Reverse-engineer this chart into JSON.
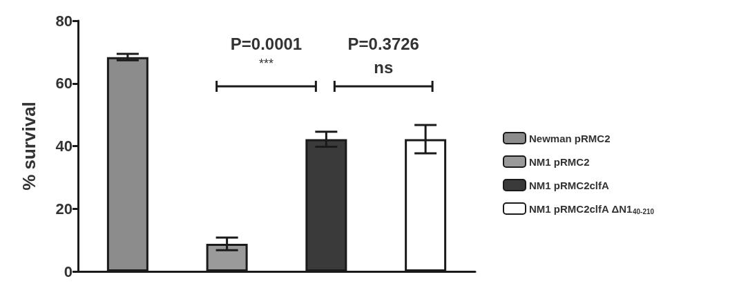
{
  "chart_data": {
    "type": "bar",
    "ylabel": "% survival",
    "categories": [
      null,
      null,
      null,
      null
    ],
    "series": [
      {
        "name": "Newman pRMC2",
        "color": "#8c8c8c",
        "values": [
          68.4,
          null,
          null,
          null
        ],
        "errors": [
          1,
          null,
          null,
          null
        ]
      },
      {
        "name": "NM1 pRMC2",
        "color": "#9a9a9a",
        "values": [
          null,
          8.8,
          null,
          null
        ],
        "errors": [
          null,
          2,
          null,
          null
        ]
      },
      {
        "name": "NM1 pRMC2clfA",
        "color": "#3a3a3a",
        "values": [
          null,
          null,
          42.2,
          null
        ],
        "errors": [
          null,
          null,
          2.4,
          null
        ]
      },
      {
        "name": "NM1 pRMC2clfA ΔN1$_{40-210}$",
        "color": "#ffffff",
        "values": [
          null,
          null,
          null,
          42.2
        ],
        "errors": [
          null,
          null,
          null,
          4.5
        ]
      }
    ],
    "annotations": [
      "P=0.0001",
      "***",
      "P=0.3726",
      "ns"
    ],
    "ylim": [
      0,
      80
    ],
    "yticks": [
      0,
      20,
      40,
      60,
      80
    ],
    "grid": false,
    "legend": "right"
  }
}
